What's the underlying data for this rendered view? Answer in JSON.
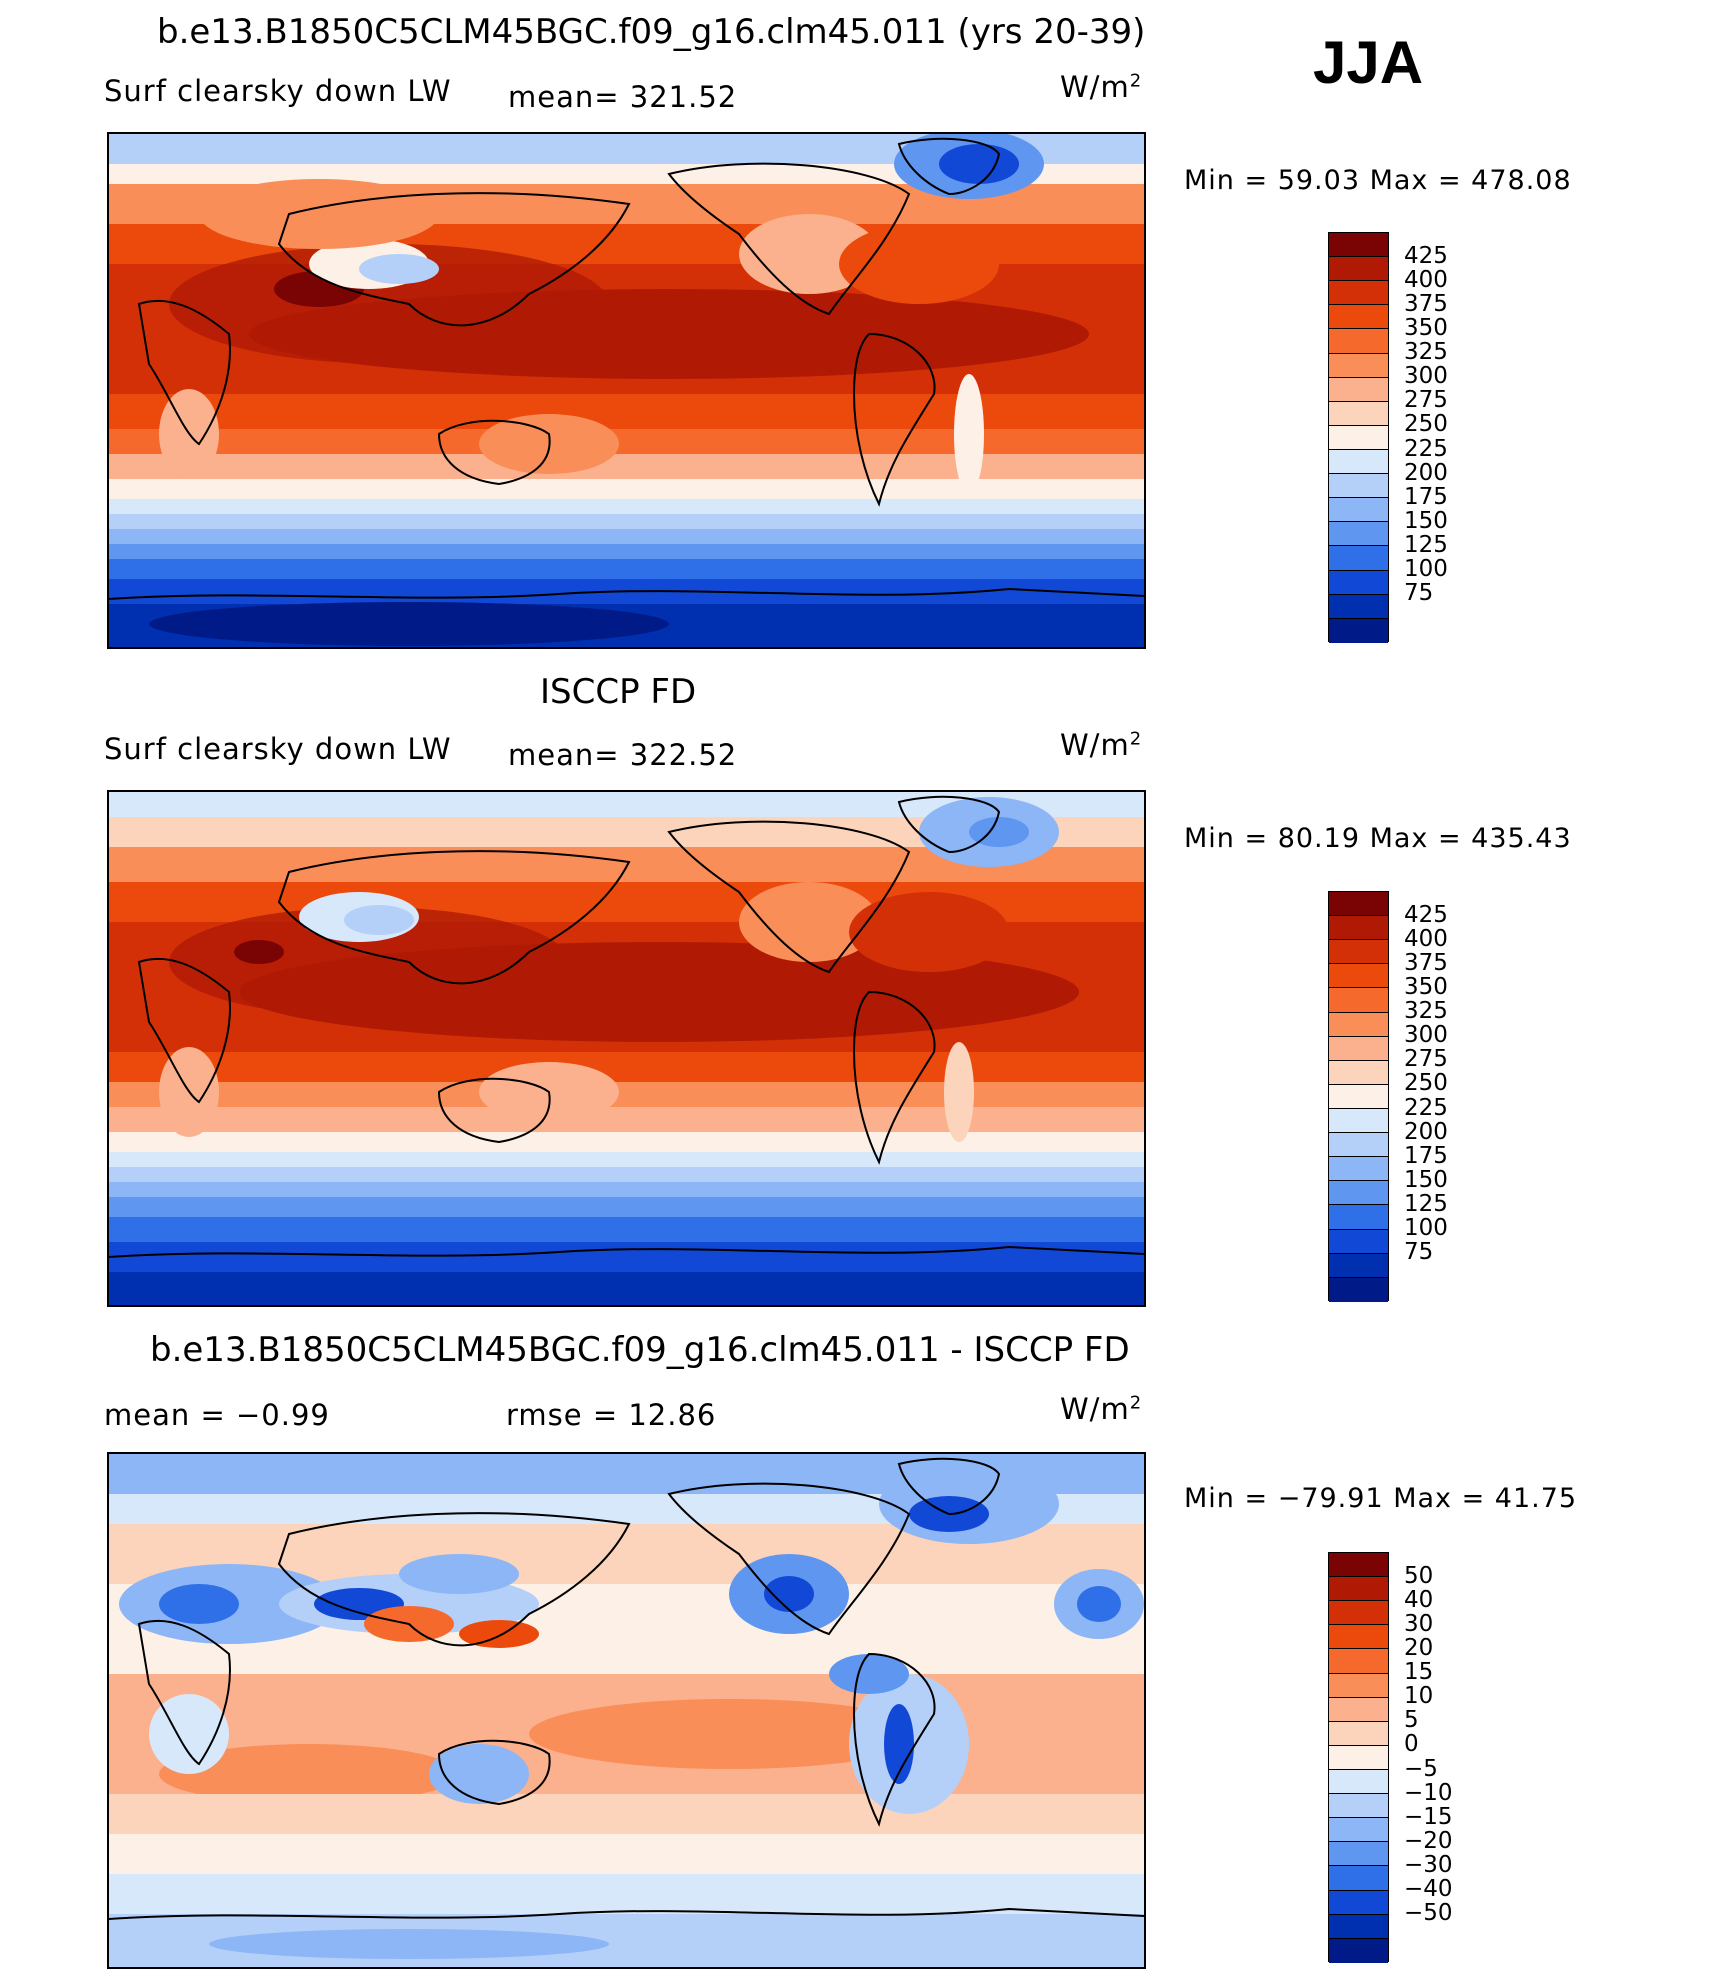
{
  "season": "JJA",
  "panels": [
    {
      "id": "model",
      "title": "b.e13.B1850C5CLM45BGC.f09_g16.clm45.011 (yrs 20-39)",
      "left_label": "Surf  clearsky  down  LW",
      "center_label": "mean=  321.52",
      "units": "W/m",
      "units_sup": "2",
      "minmax": "Min  =    59.03  Max  =  478.08",
      "colorbar": {
        "labels": [
          "425",
          "400",
          "375",
          "350",
          "325",
          "300",
          "275",
          "250",
          "225",
          "200",
          "175",
          "150",
          "125",
          "100",
          "75"
        ],
        "colors": [
          "#7a0403",
          "#b01a05",
          "#d33007",
          "#ec4a0c",
          "#f56a2c",
          "#f98e58",
          "#fbb18d",
          "#fcd4bb",
          "#fdf0e6",
          "#d7e8fb",
          "#b4d0f9",
          "#8cb6f6",
          "#5e96f0",
          "#2f6fe8",
          "#1148d6",
          "#0030b0",
          "#001a88"
        ]
      }
    },
    {
      "id": "obs",
      "title": "ISCCP FD",
      "left_label": "Surf  clearsky  down  LW",
      "center_label": "mean=  322.52",
      "units": "W/m",
      "units_sup": "2",
      "minmax": "Min  =    80.19  Max  =  435.43",
      "colorbar": {
        "labels": [
          "425",
          "400",
          "375",
          "350",
          "325",
          "300",
          "275",
          "250",
          "225",
          "200",
          "175",
          "150",
          "125",
          "100",
          "75"
        ],
        "colors": [
          "#7a0403",
          "#b01a05",
          "#d33007",
          "#ec4a0c",
          "#f56a2c",
          "#f98e58",
          "#fbb18d",
          "#fcd4bb",
          "#fdf0e6",
          "#d7e8fb",
          "#b4d0f9",
          "#8cb6f6",
          "#5e96f0",
          "#2f6fe8",
          "#1148d6",
          "#0030b0",
          "#001a88"
        ]
      }
    },
    {
      "id": "diff",
      "title": "b.e13.B1850C5CLM45BGC.f09_g16.clm45.011 - ISCCP FD",
      "left_label": "mean  =     −0.99",
      "center_label": "rmse  =     12.86",
      "units": "W/m",
      "units_sup": "2",
      "minmax": "Min  =  −79.91  Max  =    41.75",
      "colorbar": {
        "labels": [
          "50",
          "40",
          "30",
          "20",
          "15",
          "10",
          "5",
          "0",
          "−5",
          "−10",
          "−15",
          "−20",
          "−30",
          "−40",
          "−50"
        ],
        "colors": [
          "#7a0403",
          "#b01a05",
          "#d33007",
          "#ec4a0c",
          "#f56a2c",
          "#f98e58",
          "#fbb18d",
          "#fcd4bb",
          "#fdf0e6",
          "#d7e8fb",
          "#b4d0f9",
          "#8cb6f6",
          "#5e96f0",
          "#2f6fe8",
          "#1148d6",
          "#0030b0",
          "#001a88"
        ]
      }
    }
  ]
}
